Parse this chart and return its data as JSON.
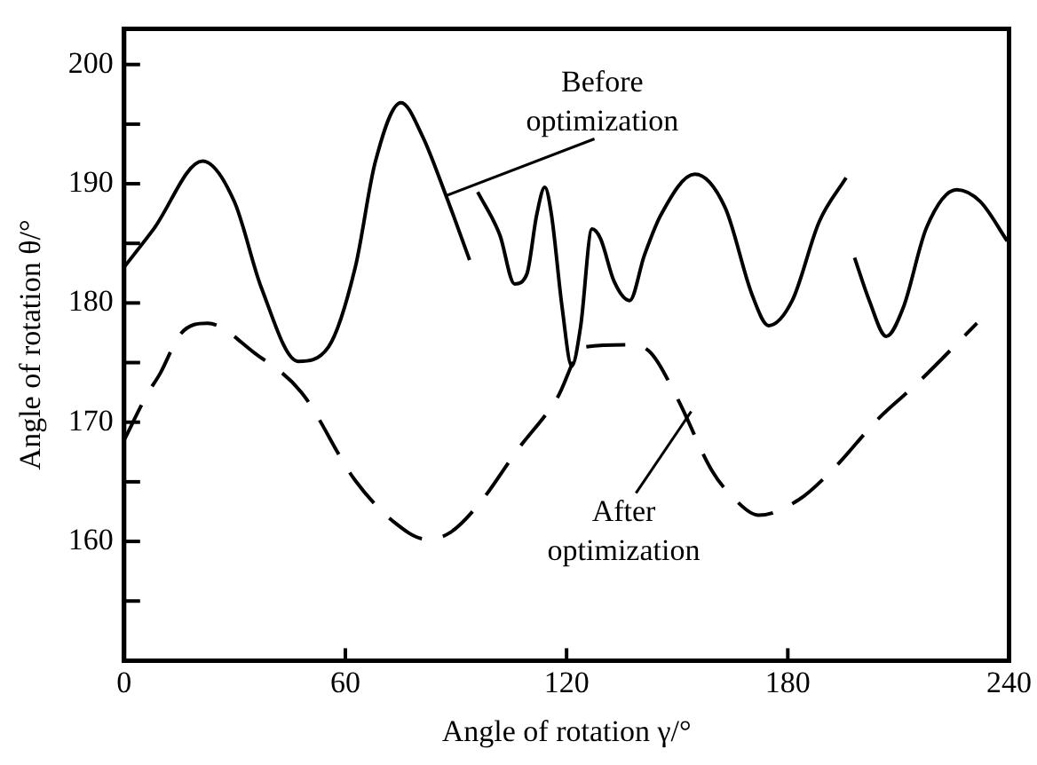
{
  "chart_data": {
    "type": "line",
    "xlabel": "Angle of rotation γ/°",
    "ylabel": "Angle of rotation θ/°",
    "xlim": [
      0,
      240
    ],
    "xticks": [
      0,
      60,
      120,
      180,
      240
    ],
    "ylim": [
      150,
      203
    ],
    "yticks": [
      {
        "value": 155,
        "label": null
      },
      160,
      {
        "value": 165,
        "label": null
      },
      170,
      {
        "value": 175,
        "label": null
      },
      180,
      {
        "value": 185,
        "label": null
      },
      190,
      {
        "value": 195,
        "label": null
      },
      200
    ],
    "grid": false,
    "legend": false,
    "marker": "none",
    "annotations": [
      {
        "text": "Before optimization",
        "x": 87.3,
        "y": 189
      },
      {
        "text": "After optimization",
        "x": 153.8,
        "y": 170.9
      }
    ],
    "series": [
      {
        "color": "#000000",
        "line_style": "solid",
        "x": [
          0,
          8,
          21.3,
          29.9,
          37.2,
          47.2,
          55.4,
          62.7,
          68.1,
          75.1,
          80.9,
          87.3,
          93.7,
          null,
          95.9,
          101.9,
          105.9,
          109.2,
          111.9,
          114.1,
          115.9,
          118.8,
          121.4,
          123.8,
          126.9,
          129.2,
          132.9,
          137.1,
          141.1,
          145.6,
          154.8,
          163,
          170.3,
          174.8,
          181.2,
          188.5,
          195.8,
          null,
          198.1,
          202.1,
          206.7,
          211.3,
          217.6,
          225.8,
          232.2,
          239.5
        ],
        "values": [
          183,
          186.2,
          191.9,
          188.5,
          181.3,
          175.1,
          176.3,
          183,
          191.8,
          196.8,
          194,
          189,
          183.6,
          null,
          189.3,
          185.7,
          181.6,
          182.4,
          187.4,
          189.7,
          187.4,
          179.6,
          174.7,
          178,
          186.2,
          185.4,
          181.8,
          180.2,
          184,
          187.4,
          190.8,
          188,
          180.7,
          178.1,
          180.2,
          186.8,
          190.5,
          null,
          183.8,
          180.2,
          177.2,
          179.6,
          186.3,
          189.5,
          188.5,
          185.2
        ]
      },
      {
        "color": "#000000",
        "line_style": "dashed",
        "x": [
          0,
          6.2,
          9.8,
          15.3,
          22.6,
          35.4,
          48.1,
          62.7,
          73.7,
          81.8,
          88.2,
          96.4,
          106.5,
          117.4,
          124.7,
          137.4,
          142.9,
          150.2,
          159.3,
          164.8,
          172.1,
          183,
          192.1,
          204.9,
          214.9,
          231.3
        ],
        "values": [
          168.5,
          172.3,
          174.1,
          177.4,
          178.3,
          175.8,
          172.5,
          165.1,
          161.5,
          160.2,
          160.7,
          163.2,
          167.6,
          172,
          176.3,
          176.5,
          175.8,
          171.9,
          166,
          163.8,
          162.2,
          163.5,
          166,
          170.4,
          173.2,
          178.3
        ]
      }
    ]
  }
}
